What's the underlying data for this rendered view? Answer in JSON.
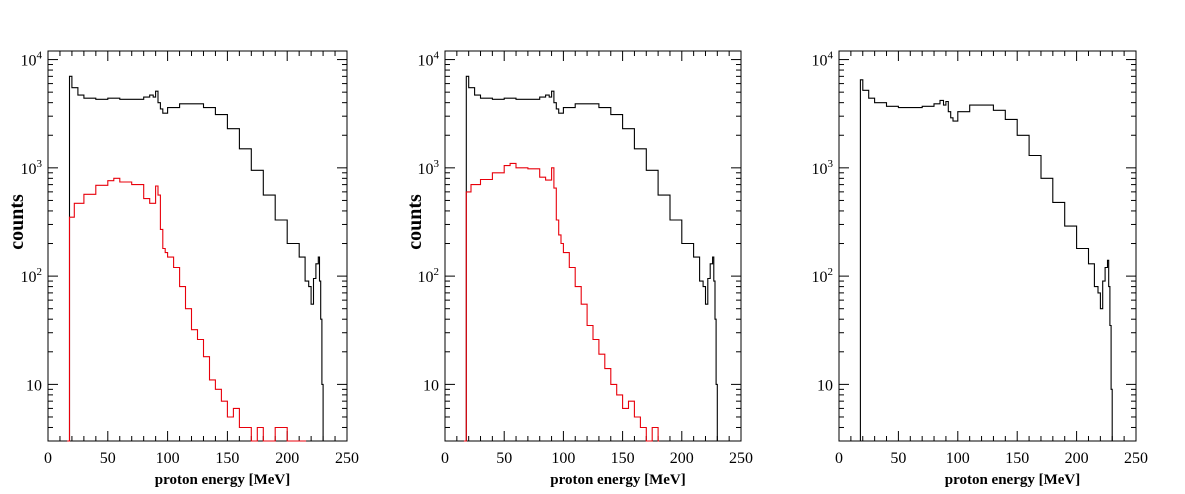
{
  "chart_data": [
    {
      "type": "histogram",
      "xlabel": "proton energy [MeV]",
      "ylabel": "counts",
      "xlim": [
        0,
        250
      ],
      "ylim": [
        3,
        12000
      ],
      "yscale": "log",
      "x_ticks": [
        0,
        50,
        100,
        150,
        200,
        250
      ],
      "x_tick_labels": [
        "0",
        "50",
        "100",
        "150",
        "200",
        "250"
      ],
      "y_ticks": [
        10,
        100,
        1000,
        10000
      ],
      "y_tick_labels": [
        {
          "base": "10",
          "exp": ""
        },
        {
          "base": "10",
          "exp": "2"
        },
        {
          "base": "10",
          "exp": "3"
        },
        {
          "base": "10",
          "exp": "4"
        }
      ],
      "series": [
        {
          "color": "#000000",
          "x": [
            16,
            18,
            20,
            25,
            30,
            40,
            50,
            60,
            70,
            80,
            85,
            88,
            90,
            92,
            94,
            96,
            100,
            110,
            120,
            130,
            140,
            150,
            160,
            170,
            180,
            190,
            200,
            210,
            215,
            218,
            220,
            222,
            224,
            226,
            227,
            228,
            229,
            230,
            231
          ],
          "y": [
            3,
            7000,
            5500,
            4700,
            4400,
            4300,
            4400,
            4300,
            4300,
            4500,
            4700,
            4500,
            5100,
            4000,
            3500,
            3200,
            3600,
            3900,
            3900,
            3600,
            3100,
            2300,
            1500,
            950,
            560,
            330,
            200,
            150,
            90,
            80,
            55,
            95,
            130,
            150,
            90,
            40,
            10,
            3,
            3
          ]
        },
        {
          "color": "#e8000b",
          "x": [
            16,
            18,
            22,
            30,
            40,
            50,
            55,
            60,
            70,
            80,
            85,
            90,
            92,
            94,
            96,
            98,
            100,
            105,
            110,
            115,
            120,
            125,
            130,
            135,
            140,
            145,
            150,
            155,
            160,
            165,
            170,
            175,
            180,
            190,
            200,
            215
          ],
          "y": [
            3,
            350,
            470,
            570,
            690,
            760,
            800,
            740,
            700,
            520,
            470,
            680,
            560,
            270,
            180,
            165,
            150,
            120,
            80,
            50,
            32,
            26,
            18,
            11,
            9,
            7,
            5,
            6,
            4,
            4,
            3,
            4,
            3,
            4,
            3,
            3
          ]
        }
      ]
    },
    {
      "type": "histogram",
      "xlabel": "proton energy [MeV]",
      "ylabel": "counts",
      "xlim": [
        0,
        250
      ],
      "ylim": [
        3,
        12000
      ],
      "yscale": "log",
      "x_ticks": [
        0,
        50,
        100,
        150,
        200,
        250
      ],
      "x_tick_labels": [
        "0",
        "50",
        "100",
        "150",
        "200",
        "250"
      ],
      "y_ticks": [
        10,
        100,
        1000,
        10000
      ],
      "y_tick_labels": [
        {
          "base": "10",
          "exp": ""
        },
        {
          "base": "10",
          "exp": "2"
        },
        {
          "base": "10",
          "exp": "3"
        },
        {
          "base": "10",
          "exp": "4"
        }
      ],
      "series": [
        {
          "color": "#000000",
          "x": [
            16,
            18,
            20,
            25,
            30,
            40,
            50,
            60,
            70,
            80,
            85,
            88,
            90,
            92,
            94,
            96,
            100,
            110,
            120,
            130,
            140,
            150,
            160,
            170,
            180,
            190,
            200,
            210,
            215,
            218,
            220,
            222,
            224,
            226,
            227,
            228,
            229,
            230,
            231
          ],
          "y": [
            3,
            7000,
            5500,
            4700,
            4400,
            4300,
            4400,
            4300,
            4300,
            4500,
            4700,
            4500,
            5100,
            4000,
            3500,
            3200,
            3600,
            3900,
            3900,
            3600,
            3100,
            2300,
            1500,
            950,
            560,
            330,
            200,
            150,
            90,
            80,
            55,
            95,
            130,
            150,
            90,
            40,
            10,
            3,
            3
          ]
        },
        {
          "color": "#e8000b",
          "x": [
            16,
            18,
            22,
            30,
            40,
            50,
            55,
            60,
            70,
            80,
            85,
            90,
            92,
            94,
            96,
            98,
            100,
            105,
            110,
            115,
            120,
            125,
            130,
            135,
            140,
            145,
            150,
            155,
            160,
            165,
            170,
            175,
            180
          ],
          "y": [
            3,
            600,
            700,
            780,
            900,
            1050,
            1100,
            1000,
            980,
            820,
            770,
            1000,
            650,
            330,
            240,
            200,
            165,
            120,
            80,
            55,
            35,
            26,
            19,
            14,
            10,
            8,
            6,
            7,
            5,
            4,
            3,
            4,
            3
          ]
        }
      ]
    },
    {
      "type": "histogram",
      "xlabel": "proton energy [MeV]",
      "ylabel": "",
      "xlim": [
        0,
        250
      ],
      "ylim": [
        3,
        12000
      ],
      "yscale": "log",
      "x_ticks": [
        0,
        50,
        100,
        150,
        200,
        250
      ],
      "x_tick_labels": [
        "0",
        "50",
        "100",
        "150",
        "200",
        "250"
      ],
      "y_ticks": [
        10,
        100,
        1000,
        10000
      ],
      "y_tick_labels": [
        {
          "base": "10",
          "exp": ""
        },
        {
          "base": "10",
          "exp": "2"
        },
        {
          "base": "10",
          "exp": "3"
        },
        {
          "base": "10",
          "exp": "4"
        }
      ],
      "series": [
        {
          "color": "#000000",
          "x": [
            16,
            18,
            20,
            25,
            30,
            40,
            50,
            60,
            70,
            80,
            85,
            88,
            90,
            92,
            94,
            96,
            100,
            110,
            120,
            130,
            140,
            150,
            160,
            170,
            180,
            190,
            200,
            210,
            215,
            218,
            220,
            222,
            224,
            226,
            227,
            228,
            229,
            230,
            231
          ],
          "y": [
            3,
            6500,
            5200,
            4400,
            4000,
            3700,
            3600,
            3600,
            3700,
            3900,
            4200,
            3800,
            4100,
            3300,
            2900,
            2700,
            3300,
            3800,
            3800,
            3400,
            2800,
            2000,
            1300,
            800,
            480,
            290,
            180,
            130,
            80,
            70,
            50,
            90,
            120,
            140,
            80,
            35,
            9,
            3,
            3
          ]
        }
      ]
    }
  ]
}
